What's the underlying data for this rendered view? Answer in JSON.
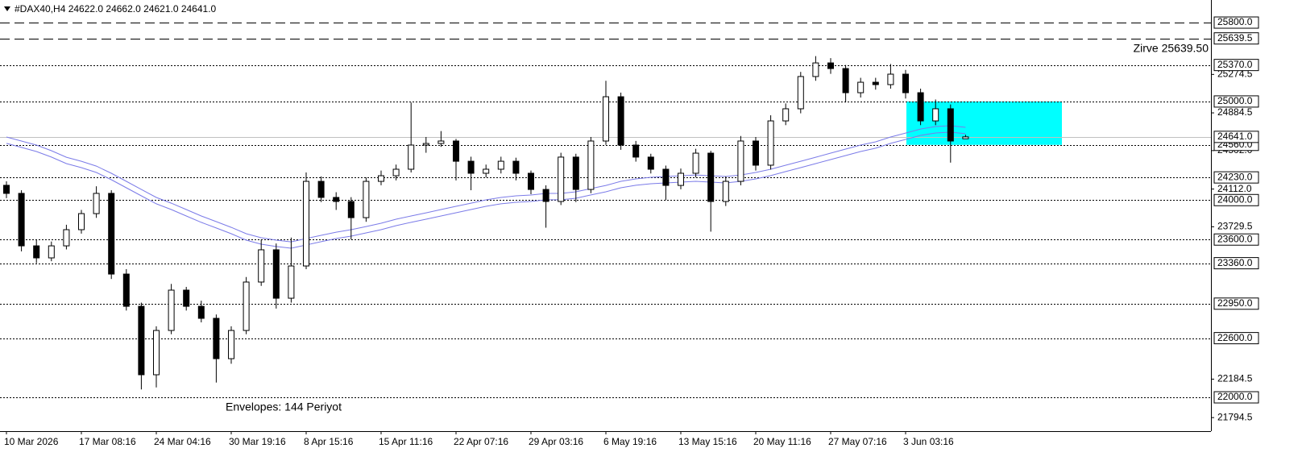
{
  "chart_data": {
    "type": "candlestick",
    "title": "#DAX40,H4  24622.0 24662.0 24621.0 24641.0",
    "categories": [
      "10 Mar 2026",
      null,
      null,
      null,
      null,
      "17 Mar 08:16",
      null,
      null,
      null,
      null,
      "24 Mar 04:16",
      null,
      null,
      null,
      null,
      "30 Mar 19:16",
      null,
      null,
      null,
      null,
      "8 Apr 15:16",
      null,
      null,
      null,
      null,
      "15 Apr 11:16",
      null,
      null,
      null,
      null,
      "22 Apr 07:16",
      null,
      null,
      null,
      null,
      "29 Apr 03:16",
      null,
      null,
      null,
      null,
      "6 May 19:16",
      null,
      null,
      null,
      null,
      "13 May 15:16",
      null,
      null,
      null,
      null,
      "20 May 11:16",
      null,
      null,
      null,
      null,
      "27 May 07:16",
      null,
      null,
      null,
      null,
      "3 Jun 03:16",
      null,
      null,
      null,
      null
    ],
    "ohlc": {
      "open": [
        24150,
        24068,
        23536,
        23414,
        23536,
        23700,
        23863,
        24068,
        23250,
        22923,
        22229,
        22678,
        23087,
        22923,
        22801,
        22392,
        22678,
        23169,
        23496,
        23005,
        23332,
        24190,
        24027,
        23986,
        23822,
        24190,
        24247,
        24313,
        24558,
        24574,
        24599,
        24394,
        24272,
        24313,
        24394,
        24272,
        24108,
        23986,
        24436,
        24108,
        24599,
        25048,
        24558,
        24436,
        24313,
        24149,
        24272,
        24476,
        23986,
        24190,
        24599,
        24354,
        24803,
        24926,
        25253,
        25391,
        25334,
        25089,
        25195,
        25171,
        25277,
        25089,
        24803,
        24926,
        24622
      ],
      "high": [
        24190,
        24100,
        23600,
        23580,
        23750,
        23900,
        24140,
        24100,
        23300,
        22960,
        22720,
        23150,
        23120,
        22980,
        22840,
        22720,
        23220,
        23600,
        23560,
        23620,
        24280,
        24240,
        24080,
        24030,
        24230,
        24300,
        24360,
        24990,
        24640,
        24700,
        24620,
        24440,
        24360,
        24440,
        24430,
        24300,
        24150,
        24480,
        24470,
        24640,
        25210,
        25090,
        24600,
        24470,
        24350,
        24320,
        24520,
        24500,
        24240,
        24650,
        24640,
        24860,
        24980,
        25300,
        25460,
        25440,
        25370,
        25240,
        25240,
        25380,
        25320,
        25130,
        25020,
        24970,
        24662
      ],
      "low": [
        24020,
        23480,
        23360,
        23380,
        23500,
        23660,
        23820,
        23200,
        22880,
        22080,
        22100,
        22640,
        22880,
        22760,
        22150,
        22340,
        22640,
        23130,
        22900,
        22960,
        23300,
        23980,
        23900,
        23600,
        23780,
        24150,
        24200,
        24280,
        24480,
        24540,
        24200,
        24100,
        24230,
        24270,
        24200,
        24060,
        23720,
        23950,
        23980,
        24070,
        24560,
        24510,
        24390,
        24270,
        24000,
        24110,
        24230,
        23680,
        23940,
        24150,
        24300,
        24310,
        24760,
        24880,
        25210,
        25280,
        24990,
        25040,
        25120,
        25130,
        25030,
        24760,
        24760,
        24380,
        24621
      ],
      "close": [
        24068,
        23536,
        23414,
        23536,
        23700,
        23863,
        24068,
        23250,
        22923,
        22229,
        22678,
        23087,
        22923,
        22801,
        22392,
        22678,
        23169,
        23496,
        23005,
        23332,
        24190,
        24027,
        23986,
        23822,
        24190,
        24247,
        24313,
        24558,
        24574,
        24599,
        24394,
        24272,
        24313,
        24394,
        24272,
        24108,
        23986,
        24436,
        24108,
        24599,
        25048,
        24558,
        24436,
        24313,
        24149,
        24272,
        24476,
        23986,
        24190,
        24599,
        24354,
        24803,
        24926,
        25253,
        25391,
        25334,
        25089,
        25195,
        25171,
        25277,
        25089,
        24803,
        24926,
        24599,
        24641
      ]
    },
    "envelopes": [
      {
        "color": "#7b7be8",
        "values": [
          24640,
          24599,
          24558,
          24501,
          24435,
          24394,
          24345,
          24272,
          24190,
          24108,
          24027,
          23969,
          23904,
          23839,
          23782,
          23724,
          23659,
          23618,
          23594,
          23577,
          23610,
          23643,
          23675,
          23700,
          23732,
          23765,
          23806,
          23839,
          23871,
          23904,
          23937,
          23969,
          24002,
          24027,
          24043,
          24051,
          24068,
          24068,
          24084,
          24117,
          24149,
          24190,
          24215,
          24231,
          24239,
          24247,
          24255,
          24247,
          24239,
          24255,
          24280,
          24313,
          24354,
          24394,
          24435,
          24476,
          24517,
          24558,
          24591,
          24640,
          24680,
          24721,
          24746,
          24754,
          24738
        ]
      },
      {
        "color": "#7b7be8",
        "values": [
          24575,
          24534,
          24493,
          24436,
          24370,
          24329,
          24280,
          24207,
          24125,
          24043,
          23962,
          23904,
          23839,
          23774,
          23717,
          23659,
          23594,
          23553,
          23529,
          23512,
          23545,
          23578,
          23610,
          23635,
          23667,
          23700,
          23741,
          23774,
          23806,
          23839,
          23872,
          23904,
          23937,
          23962,
          23978,
          23986,
          24003,
          24003,
          24019,
          24052,
          24084,
          24125,
          24150,
          24166,
          24174,
          24182,
          24190,
          24182,
          24174,
          24190,
          24215,
          24248,
          24289,
          24329,
          24370,
          24411,
          24452,
          24493,
          24526,
          24575,
          24615,
          24656,
          24681,
          24689,
          24673
        ]
      }
    ],
    "ylim": [
      21657,
      26029
    ],
    "yticks": [
      25274.5,
      24884.5,
      {
        "value": 24502,
        "label": "24502.0"
      },
      {
        "value": 24112,
        "label": "24112.0"
      },
      23729.5,
      22184.5,
      21794.5
    ],
    "levels": [
      {
        "value": 25800,
        "label": "25800.0",
        "style": "long-dash"
      },
      {
        "value": 25639.5,
        "label": "25639.5",
        "style": "long-dash"
      },
      {
        "value": 25370,
        "label": "25370.0",
        "style": "dot"
      },
      {
        "value": 25000,
        "label": "25000.0",
        "style": "dot"
      },
      {
        "value": 24560,
        "label": "24560.0",
        "style": "dot"
      },
      {
        "value": 24230,
        "label": "24230.0",
        "style": "dot"
      },
      {
        "value": 24000,
        "label": "24000.0",
        "style": "dot"
      },
      {
        "value": 23600,
        "label": "23600.0",
        "style": "dot"
      },
      {
        "value": 23360,
        "label": "23360.0",
        "style": "dot"
      },
      {
        "value": 22950,
        "label": "22950.0",
        "style": "dot"
      },
      {
        "value": 22600,
        "label": "22600.0",
        "style": "dot"
      },
      {
        "value": 22000,
        "label": "22000.0",
        "style": "dot"
      }
    ],
    "price_line": {
      "value": 24641,
      "label": "24641.0",
      "color": "#c0c0c0"
    },
    "zone": {
      "from": 25000,
      "to": 24560,
      "color": "#00ffff"
    },
    "annotations": [
      {
        "text": "Zirve 25639.50",
        "color": "#d6209c"
      },
      {
        "text": "Envelopes: 144 Periyot",
        "color": "#d6209c"
      }
    ]
  }
}
